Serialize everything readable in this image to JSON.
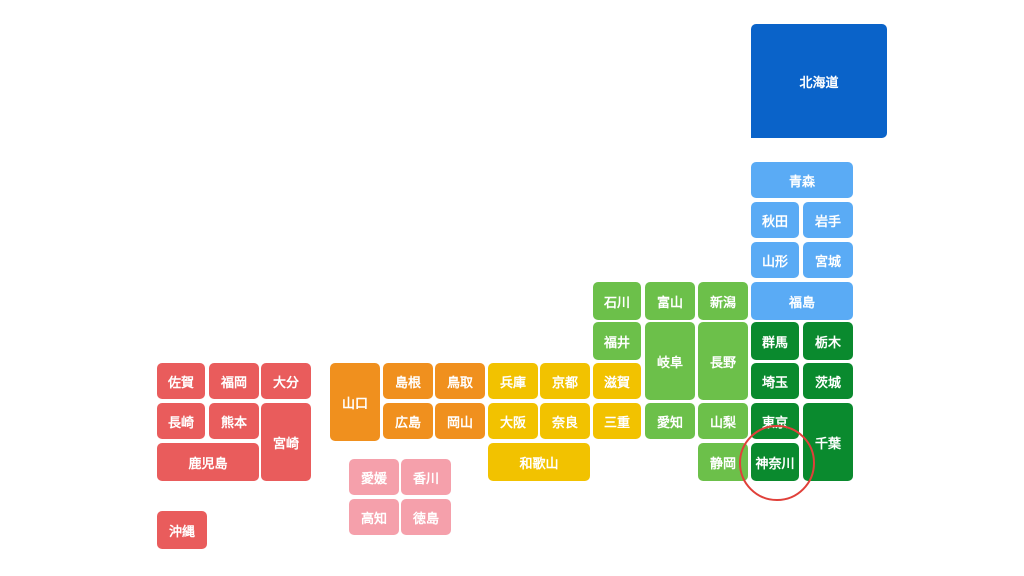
{
  "regions": [
    {
      "prefectures": [
        "北海道"
      ]
    },
    {
      "prefectures": [
        "青森",
        "秋田",
        "岩手",
        "山形",
        "宮城",
        "福島"
      ]
    },
    {
      "prefectures": [
        "群馬",
        "栃木",
        "埼玉",
        "茨城",
        "東京",
        "千葉",
        "神奈川"
      ]
    },
    {
      "prefectures": [
        "石川",
        "富山",
        "新潟",
        "福井",
        "岐阜",
        "長野",
        "愛知",
        "山梨",
        "静岡"
      ]
    },
    {
      "prefectures": [
        "兵庫",
        "京都",
        "滋賀",
        "大阪",
        "奈良",
        "三重",
        "和歌山"
      ]
    },
    {
      "prefectures": [
        "山口",
        "島根",
        "鳥取",
        "広島",
        "岡山"
      ]
    },
    {
      "prefectures": [
        "愛媛",
        "香川",
        "高知",
        "徳島"
      ]
    },
    {
      "prefectures": [
        "佐賀",
        "福岡",
        "大分",
        "長崎",
        "熊本",
        "宮崎",
        "鹿児島",
        "沖縄"
      ]
    }
  ]
}
